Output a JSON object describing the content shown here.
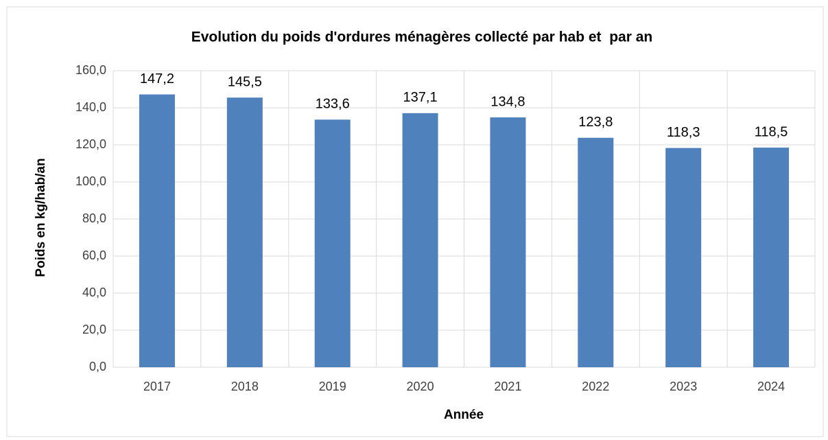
{
  "chart_data": {
    "type": "bar",
    "title": "Evolution du poids d'ordures ménagères collecté par hab et  par an",
    "x_label": "Année",
    "y_label": "Poids en kg/hab/an",
    "categories": [
      "2017",
      "2018",
      "2019",
      "2020",
      "2021",
      "2022",
      "2023",
      "2024"
    ],
    "values": [
      147.2,
      145.5,
      133.6,
      137.1,
      134.8,
      123.8,
      118.3,
      118.5
    ],
    "value_labels": [
      "147,2",
      "145,5",
      "133,6",
      "137,1",
      "134,8",
      "123,8",
      "118,3",
      "118,5"
    ],
    "color": "#4f81bd",
    "ylim": [
      0,
      160
    ],
    "yticks": [
      {
        "value": 0,
        "label": "0,0"
      },
      {
        "value": 20,
        "label": "20,0"
      },
      {
        "value": 40,
        "label": "40,0"
      },
      {
        "value": 60,
        "label": "60,0"
      },
      {
        "value": 80,
        "label": "80,0"
      },
      {
        "value": 100,
        "label": "100,0"
      },
      {
        "value": 120,
        "label": "120,0"
      },
      {
        "value": 140,
        "label": "140,0"
      },
      {
        "value": 160,
        "label": "160,0"
      }
    ],
    "grid": true
  }
}
